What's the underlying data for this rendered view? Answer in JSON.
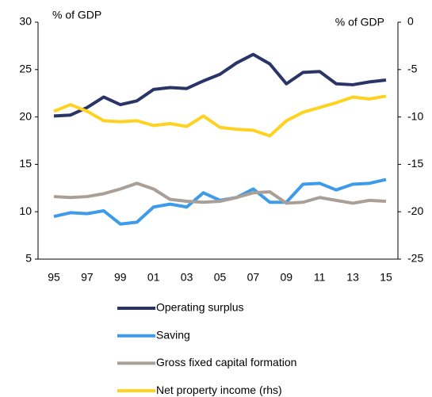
{
  "chart_data": {
    "type": "line",
    "y_label": "% of GDP",
    "y2_label": "% of GDP",
    "categories": [
      "95",
      null,
      "97",
      null,
      "99",
      null,
      "01",
      null,
      "03",
      null,
      "05",
      null,
      "07",
      null,
      "09",
      null,
      "11",
      null,
      "13",
      null,
      "15"
    ],
    "ylim": [
      5,
      30
    ],
    "yticks": [
      5,
      10,
      15,
      20,
      25,
      30
    ],
    "y2lim": [
      -25,
      0
    ],
    "y2ticks": [
      -25,
      -20,
      -15,
      -10,
      -5,
      0
    ],
    "grid": false,
    "legend": "bottom",
    "series": [
      {
        "name": "Operating surplus",
        "color": "#2b3467",
        "values": [
          20.1,
          20.2,
          21.0,
          22.1,
          21.3,
          21.7,
          22.9,
          23.1,
          23.0,
          23.8,
          24.5,
          25.7,
          26.6,
          25.6,
          23.5,
          24.7,
          24.8,
          23.5,
          23.4,
          23.7,
          23.9
        ]
      },
      {
        "name": "Saving",
        "color": "#3d9be9",
        "values": [
          9.5,
          9.9,
          9.8,
          10.1,
          8.7,
          8.9,
          10.5,
          10.8,
          10.5,
          12.0,
          11.2,
          11.5,
          12.4,
          11.0,
          11.0,
          12.9,
          13.0,
          12.3,
          12.9,
          13.0,
          13.4
        ]
      },
      {
        "name": "Gross fixed capital formation",
        "color": "#a99f97",
        "values": [
          11.6,
          11.5,
          11.6,
          11.9,
          12.4,
          13.0,
          12.4,
          11.3,
          11.1,
          11.0,
          11.1,
          11.5,
          12.0,
          12.1,
          10.9,
          11.0,
          11.5,
          11.2,
          10.9,
          11.2,
          11.1
        ]
      },
      {
        "name": "Net property income (rhs)",
        "color": "#ffd21f",
        "axis": "y2",
        "values": [
          -9.4,
          -8.7,
          -9.4,
          -10.4,
          -10.5,
          -10.4,
          -10.9,
          -10.7,
          -11.0,
          -9.9,
          -11.1,
          -11.3,
          -11.4,
          -12.0,
          -10.4,
          -9.5,
          -9.0,
          -8.5,
          -7.9,
          -8.1,
          -7.8
        ]
      }
    ]
  }
}
